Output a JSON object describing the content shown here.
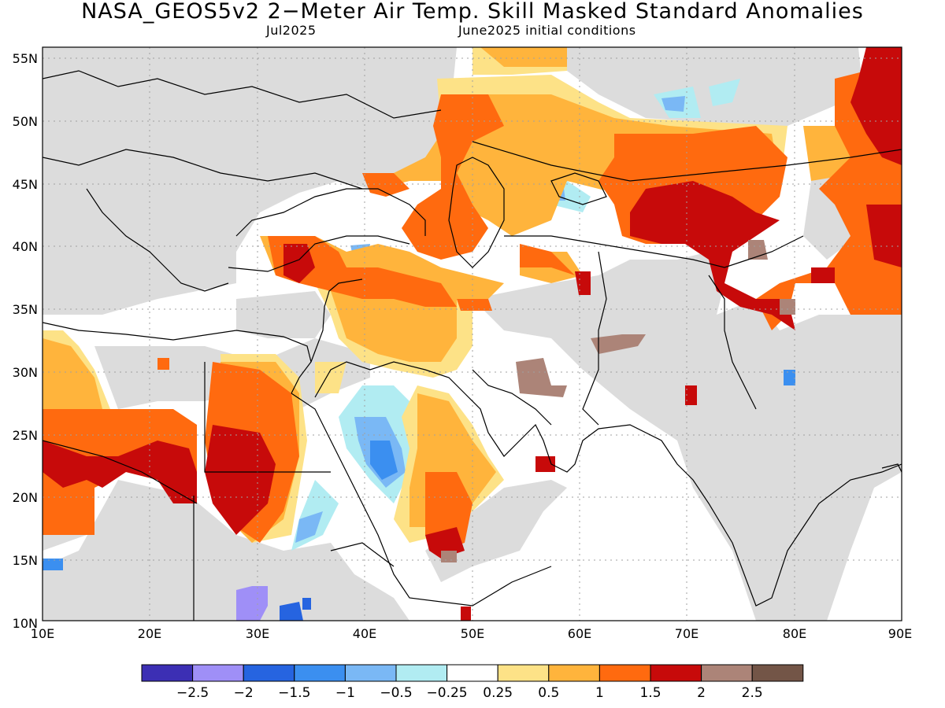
{
  "title": "NASA_GEOS5v2 2−Meter Air Temp. Skill Masked Standard Anomalies",
  "valid_month": "Jul2025",
  "init_label": "June2025 initial conditions",
  "lat_ticks": [
    "10N",
    "15N",
    "20N",
    "25N",
    "30N",
    "35N",
    "40N",
    "45N",
    "50N",
    "55N"
  ],
  "lon_ticks": [
    "10E",
    "20E",
    "30E",
    "40E",
    "50E",
    "60E",
    "70E",
    "80E",
    "90E"
  ],
  "colorbar": {
    "colors": [
      "#3c2fb4",
      "#9f8ff7",
      "#2664e0",
      "#3b8ff0",
      "#7ab8f5",
      "#b1ecf2",
      "#ffffff",
      "#fde287",
      "#ffb43c",
      "#ff6a0f",
      "#c70a0a",
      "#ac8478",
      "#735547"
    ],
    "labels": [
      "−2.5",
      "−2",
      "−1.5",
      "−1",
      "−0.5",
      "−0.25",
      "0.25",
      "0.5",
      "1",
      "1.5",
      "2",
      "2.5"
    ]
  },
  "legend_colors": {
    "masked": "#dcdcdc",
    "land_outline": "#000000",
    "grid": "#a0a0a0"
  }
}
